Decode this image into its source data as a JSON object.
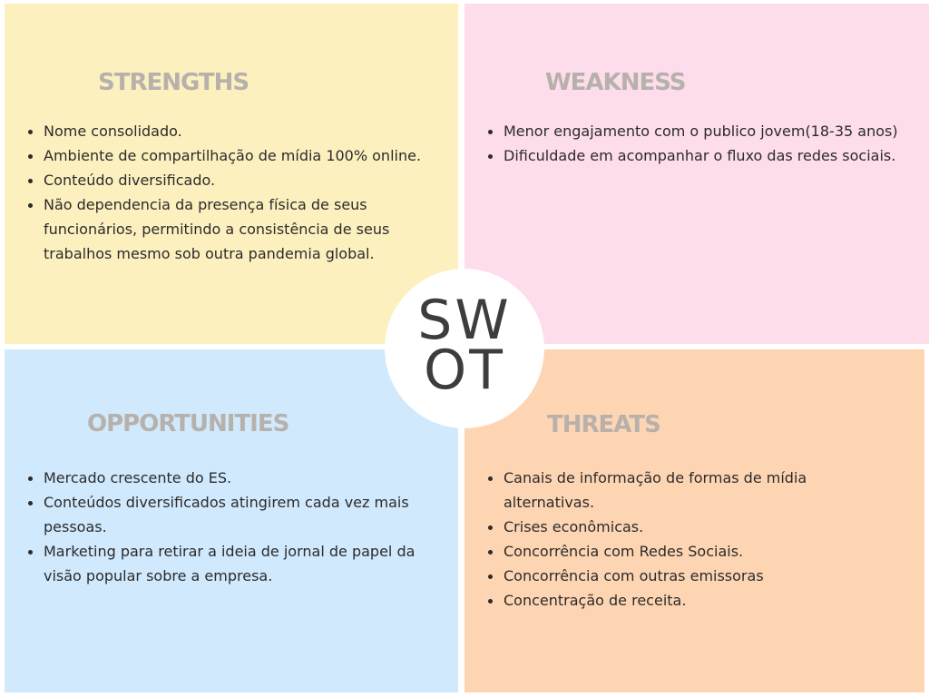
{
  "strengths": {
    "title": "STRENGTHS",
    "items": [
      "Nome consolidado.",
      "Ambiente de compartilhação de mídia 100% online.",
      "Conteúdo diversificado.",
      "Não dependencia da presença física de seus funcionários, permitindo a consistência de seus trabalhos mesmo sob outra pandemia global."
    ]
  },
  "weakness": {
    "title": "WEAKNESS",
    "items": [
      "Menor engajamento com o publico jovem(18-35 anos)",
      "Dificuldade em acompanhar o fluxo das redes sociais."
    ]
  },
  "opportunities": {
    "title": "OPPORTUNITIES",
    "items": [
      "Mercado crescente do ES.",
      "Conteúdos diversificados atingirem cada vez mais pessoas.",
      "Marketing para retirar a ideia de jornal de papel da visão popular sobre a empresa."
    ]
  },
  "threats": {
    "title": "THREATS",
    "items": [
      "Canais de informação de formas de mídia alternativas.",
      "Crises econômicas.",
      "Concorrência com Redes Sociais.",
      "Concorrência com outras emissoras",
      "Concentração de receita."
    ]
  },
  "center": {
    "line1": "SW",
    "line2": "OT"
  },
  "colors": {
    "strengths_bg": "#fdf0bf",
    "weakness_bg": "#fddcec",
    "opportunities_bg": "#d0e9fd",
    "threats_bg": "#fed5b3",
    "title_text": "#b7b1ac",
    "center_bg": "#ffffff"
  }
}
